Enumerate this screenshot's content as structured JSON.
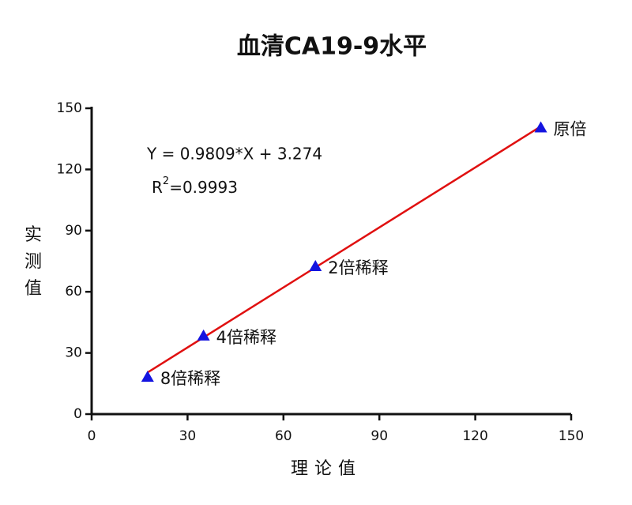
{
  "chart_data": {
    "type": "scatter",
    "title": "血清CA19-9水平",
    "x_label": "理论值",
    "y_label": "实测值",
    "x": [
      17.5,
      35,
      70,
      140.5
    ],
    "values": [
      18.2,
      38.4,
      72.5,
      140.5
    ],
    "point_labels": [
      "8倍稀释",
      "4倍稀释",
      "2倍稀释",
      "原倍"
    ],
    "color": "#1414e0",
    "fit_color": "#e01010",
    "fit": {
      "slope": 0.9809,
      "intercept": 3.274
    },
    "equation": "Y = 0.9809*X + 3.274",
    "r2": {
      "base": "R",
      "sup": "2",
      "rest": "=0.9993"
    },
    "xlim": [
      0,
      150
    ],
    "ylim": [
      0,
      150
    ],
    "xticks": [
      0,
      30,
      60,
      90,
      120,
      150
    ],
    "yticks": [
      0,
      30,
      60,
      90,
      120,
      150
    ]
  }
}
